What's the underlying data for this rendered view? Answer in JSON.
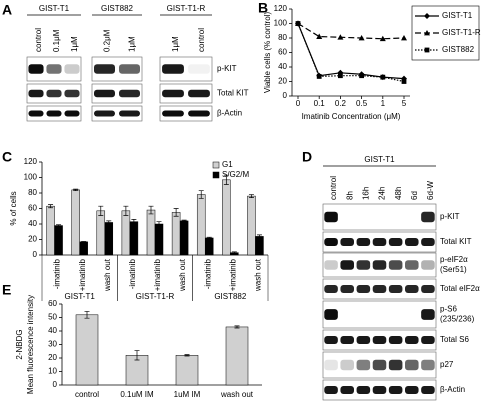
{
  "panel_labels": [
    "A",
    "B",
    "C",
    "D",
    "E"
  ],
  "blot_a": {
    "groups": [
      {
        "name": "GIST-T1",
        "lanes": [
          "control",
          "0.1μM",
          "1μM"
        ]
      },
      {
        "name": "GIST882",
        "lanes": [
          "0.2μM",
          "1μM"
        ]
      },
      {
        "name": "GIST-T1-R",
        "lanes": [
          "1μM",
          "control"
        ]
      }
    ],
    "rows": [
      [
        "p-KIT"
      ],
      [
        "Total KIT"
      ],
      [
        "β-Actin"
      ]
    ]
  },
  "blot_d": {
    "groups": [
      {
        "name": "GIST-T1",
        "lanes": [
          "control",
          "8h",
          "16h",
          "24h",
          "48h",
          "6d",
          "6d-W"
        ]
      }
    ],
    "rows": [
      [
        "p-KIT"
      ],
      [
        "Total KIT"
      ],
      [
        "p-eIF2α",
        "(Ser51)"
      ],
      [
        "Total eIF2α"
      ],
      [
        "p-S6",
        "(235/236)"
      ],
      [
        "Total S6"
      ],
      [
        "p27"
      ],
      [
        "β-Actin"
      ]
    ]
  },
  "chart_data": [
    {
      "type": "line",
      "xlabel": "Imatinib Concentration (μM)",
      "ylabel": "Viable cells (% control)",
      "categories": [
        "0",
        "0.1",
        "0.2",
        "0.5",
        "1",
        "5"
      ],
      "series": [
        {
          "name": "GIST-T1",
          "color": "#000000",
          "dash": "solid",
          "marker": "diamond",
          "values": [
            100,
            28,
            32,
            30,
            26,
            24
          ]
        },
        {
          "name": "GIST-T1-R",
          "color": "#000000",
          "dash": "dashed",
          "marker": "triangle",
          "values": [
            100,
            82,
            81,
            80,
            79,
            80
          ]
        },
        {
          "name": "GIST882",
          "color": "#000000",
          "dash": "dotted",
          "marker": "square",
          "values": [
            100,
            27,
            28,
            28,
            26,
            20
          ]
        }
      ],
      "ylim": [
        0,
        120
      ],
      "yticks": [
        0,
        20,
        40,
        60,
        80,
        100,
        120
      ],
      "legend": "right"
    },
    {
      "type": "bar",
      "ylabel": "% of cells",
      "categories": [
        "-imatinib",
        "+imatinib",
        "wash out",
        "-imatinib",
        "+imatinib",
        "wash out",
        "-imatinib",
        "+imatinib",
        "wash out"
      ],
      "groups": [
        "GIST-T1",
        "GIST-T1-R",
        "GIST882"
      ],
      "series": [
        {
          "name": "G1",
          "color": "#d0d0d0",
          "values": [
            63,
            84,
            57,
            57,
            58,
            55,
            78,
            97,
            76
          ],
          "errors": [
            2,
            1,
            6,
            6,
            5,
            5,
            5,
            6,
            2
          ]
        },
        {
          "name": "S/G2/M",
          "color": "#000000",
          "values": [
            38,
            17,
            42,
            43,
            40,
            44,
            22,
            3,
            24
          ],
          "errors": [
            1,
            0.5,
            2,
            3,
            3,
            1,
            1,
            1,
            2
          ]
        }
      ],
      "ylim": [
        0,
        120
      ],
      "yticks": [
        0,
        20,
        40,
        60,
        80,
        100,
        120
      ],
      "legend": "upper right"
    },
    {
      "type": "bar",
      "ylabel": [
        "2-NBDG",
        "Mean fluorescence intensity"
      ],
      "categories": [
        "control",
        "0.1uM IM",
        "1uM IM",
        "wash out"
      ],
      "series": [
        {
          "color": "#d0d0d0",
          "values": [
            52,
            22,
            22,
            43
          ],
          "errors": [
            2.5,
            3.5,
            0.5,
            0.8
          ]
        }
      ],
      "ylim": [
        0,
        60
      ],
      "yticks": [
        0,
        10,
        20,
        30,
        40,
        50,
        60
      ]
    }
  ]
}
